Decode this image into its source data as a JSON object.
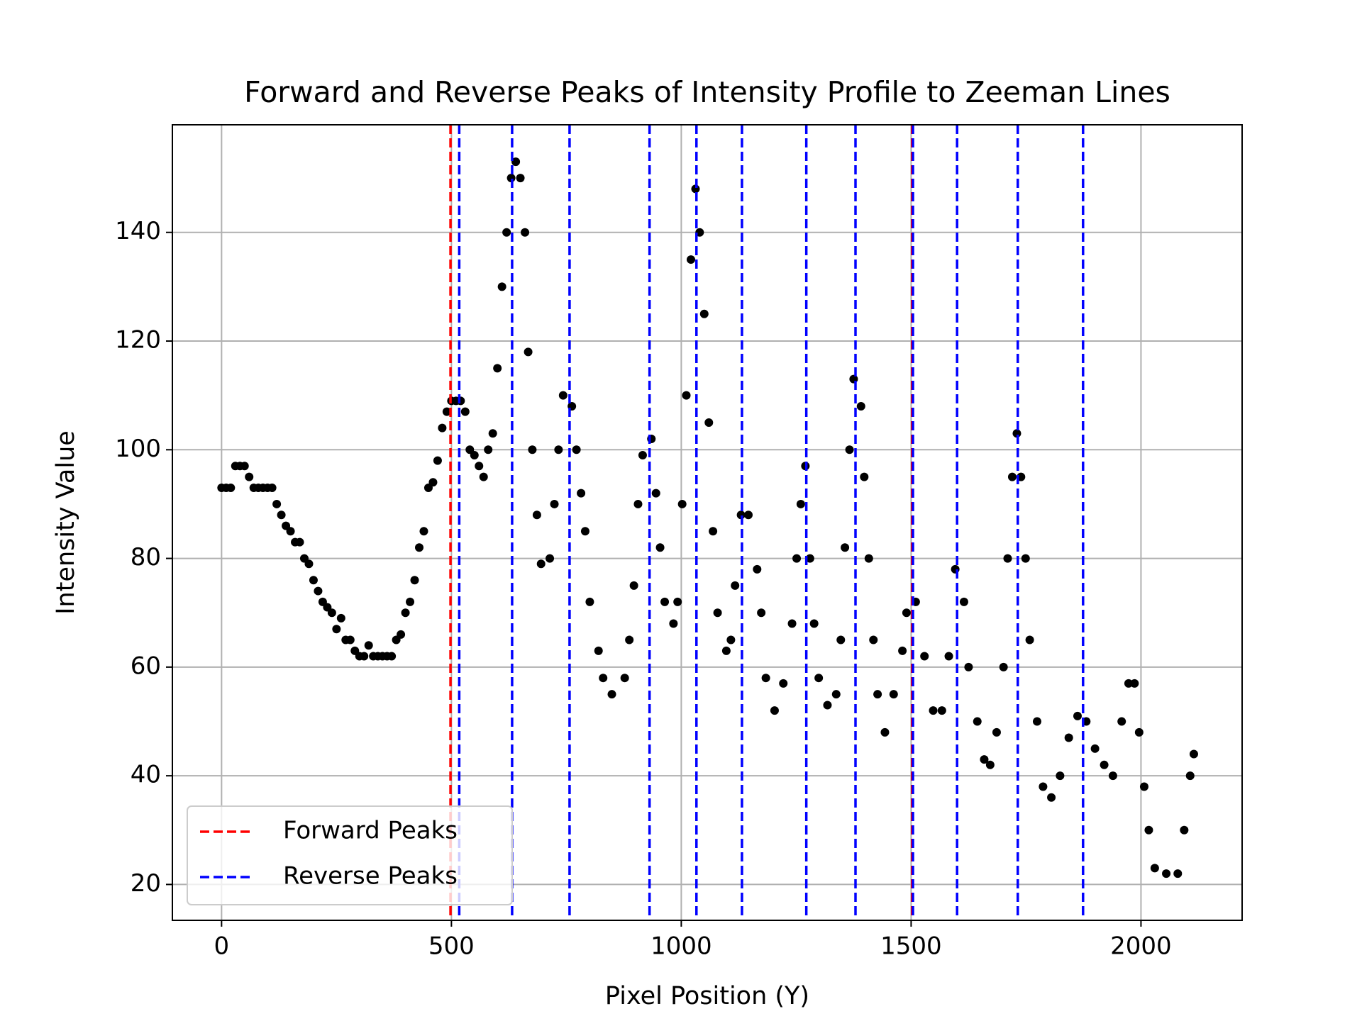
{
  "chart_data": {
    "type": "scatter",
    "title": "Forward and Reverse Peaks of Intensity Profile to Zeeman Lines",
    "x_label": "Pixel Position (Y)",
    "y_label": "Intensity Value",
    "xlim": [
      -107,
      2220
    ],
    "ylim": [
      13.4,
      159.8
    ],
    "xticks": [
      0,
      500,
      1000,
      1500,
      2000
    ],
    "yticks": [
      20,
      40,
      60,
      80,
      100,
      120,
      140
    ],
    "grid": true,
    "legend": "lower left",
    "color": "#000000",
    "x": [
      0,
      10,
      20,
      30,
      40,
      50,
      60,
      70,
      80,
      90,
      100,
      110,
      120,
      130,
      140,
      150,
      160,
      170,
      180,
      190,
      200,
      210,
      220,
      230,
      240,
      250,
      260,
      270,
      280,
      290,
      300,
      310,
      320,
      330,
      340,
      350,
      360,
      370,
      380,
      390,
      400,
      410,
      420,
      430,
      440,
      450,
      460,
      470,
      480,
      490,
      500,
      510,
      520,
      530,
      540,
      550,
      560,
      570,
      580,
      590,
      600,
      610,
      620,
      630,
      640,
      650,
      660,
      667,
      676,
      686,
      695,
      714,
      724,
      733,
      743,
      762,
      772,
      782,
      791,
      801,
      820,
      830,
      849,
      877,
      887,
      897,
      906,
      916,
      935,
      945,
      954,
      964,
      983,
      992,
      1002,
      1011,
      1021,
      1031,
      1040,
      1050,
      1060,
      1069,
      1079,
      1098,
      1108,
      1117,
      1130,
      1146,
      1165,
      1174,
      1184,
      1203,
      1222,
      1241,
      1251,
      1260,
      1270,
      1280,
      1289,
      1299,
      1318,
      1337,
      1347,
      1356,
      1366,
      1375,
      1391,
      1398,
      1408,
      1418,
      1427,
      1443,
      1462,
      1481,
      1490,
      1510,
      1529,
      1548,
      1567,
      1582,
      1596,
      1615,
      1625,
      1644,
      1659,
      1672,
      1686,
      1701,
      1710,
      1720,
      1730,
      1739,
      1749,
      1758,
      1774,
      1787,
      1805,
      1824,
      1843,
      1862,
      1881,
      1900,
      1920,
      1939,
      1958,
      1973,
      1986,
      1996,
      2007,
      2017,
      2030,
      2055,
      2080,
      2094,
      2107,
      2115
    ],
    "values": [
      93,
      93,
      93,
      97,
      97,
      97,
      95,
      93,
      93,
      93,
      93,
      93,
      90,
      88,
      86,
      85,
      83,
      83,
      80,
      79,
      76,
      74,
      72,
      71,
      70,
      67,
      69,
      65,
      65,
      63,
      62,
      62,
      64,
      62,
      62,
      62,
      62,
      62,
      65,
      66,
      70,
      72,
      76,
      82,
      85,
      93,
      94,
      98,
      104,
      107,
      109,
      109,
      109,
      107,
      100,
      99,
      97,
      95,
      100,
      103,
      115,
      130,
      140,
      150,
      153,
      150,
      140,
      118,
      100,
      88,
      79,
      80,
      90,
      100,
      110,
      108,
      100,
      92,
      85,
      72,
      63,
      58,
      55,
      58,
      65,
      75,
      90,
      99,
      102,
      92,
      82,
      72,
      68,
      72,
      90,
      110,
      135,
      148,
      140,
      125,
      105,
      85,
      70,
      63,
      65,
      75,
      88,
      88,
      78,
      70,
      58,
      52,
      57,
      68,
      80,
      90,
      97,
      80,
      68,
      58,
      53,
      55,
      65,
      82,
      100,
      113,
      108,
      95,
      80,
      65,
      55,
      48,
      55,
      63,
      70,
      72,
      62,
      52,
      52,
      62,
      78,
      72,
      60,
      50,
      43,
      42,
      48,
      60,
      80,
      95,
      103,
      95,
      80,
      65,
      50,
      38,
      36,
      40,
      47,
      51,
      50,
      45,
      42,
      40,
      50,
      57,
      57,
      48,
      38,
      30,
      23,
      22,
      22,
      30,
      40,
      44
    ],
    "vlines": [
      {
        "name": "Forward Peaks",
        "color": "#ff0000",
        "values": [
          498,
          1502
        ]
      },
      {
        "name": "Reverse Peaks",
        "color": "#0000ff",
        "values": [
          517,
          632,
          757,
          931,
          1033,
          1132,
          1272,
          1379,
          1504,
          1600,
          1732,
          1874
        ]
      }
    ]
  }
}
